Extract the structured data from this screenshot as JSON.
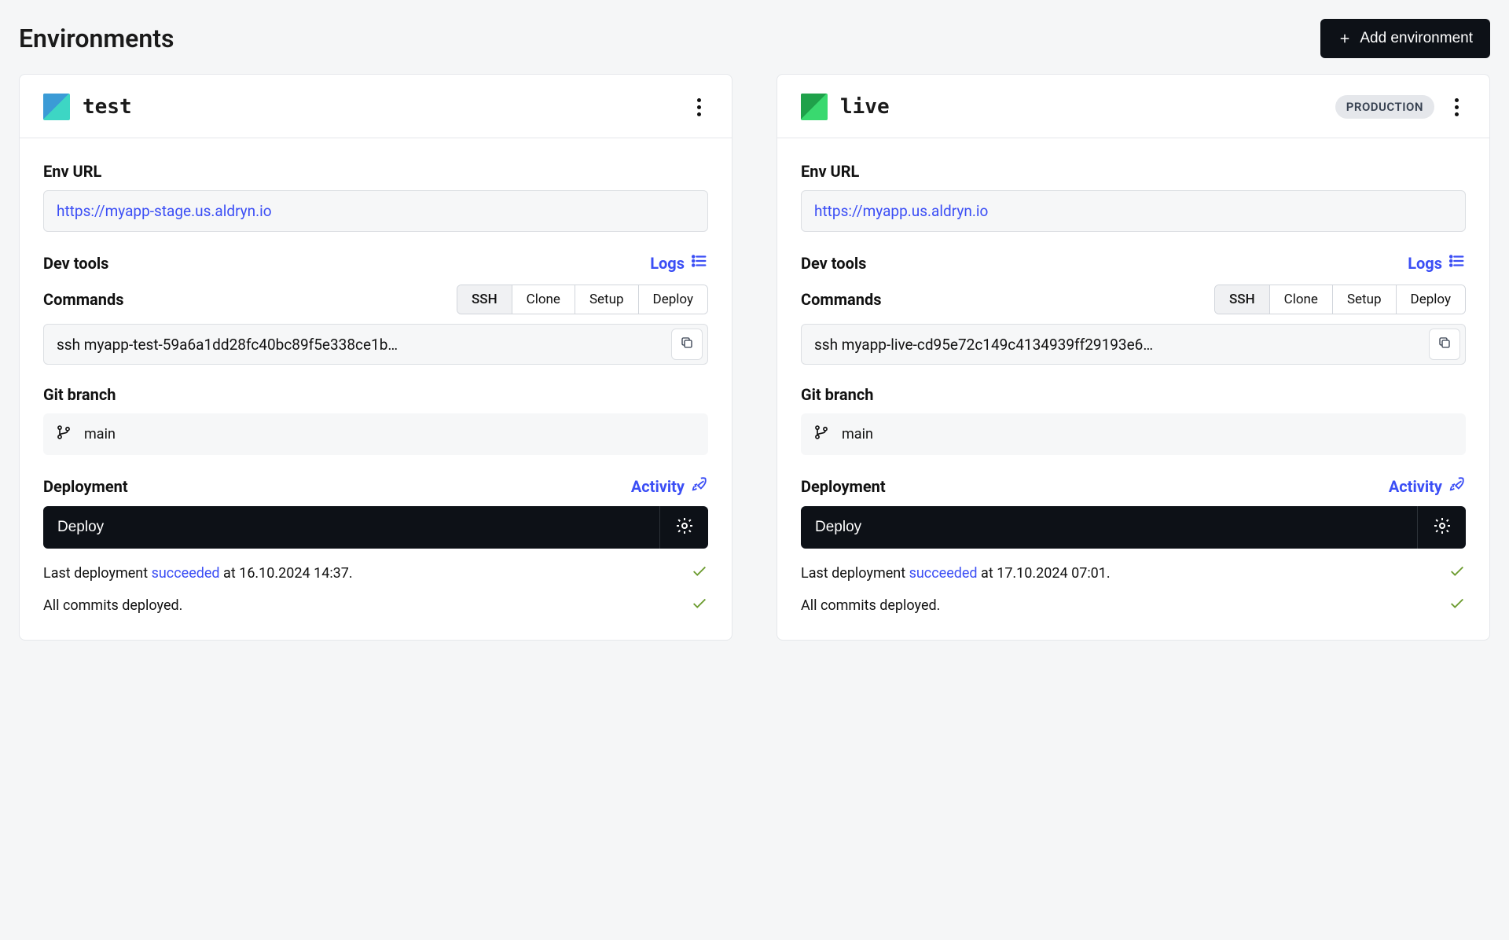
{
  "page": {
    "title": "Environments",
    "add_button": "Add environment"
  },
  "labels": {
    "env_url": "Env URL",
    "dev_tools": "Dev tools",
    "logs": "Logs",
    "commands": "Commands",
    "git_branch": "Git branch",
    "deployment": "Deployment",
    "activity": "Activity",
    "deploy": "Deploy",
    "last_deployment_prefix": "Last deployment ",
    "succeeded": "succeeded",
    "at": " at ",
    "all_commits": "All commits deployed."
  },
  "tabs": {
    "ssh": "SSH",
    "clone": "Clone",
    "setup": "Setup",
    "deploy": "Deploy"
  },
  "envs": [
    {
      "key": "test",
      "name": "test",
      "icon_variant": "test-ic",
      "badge": null,
      "url": "https://myapp-stage.us.aldryn.io",
      "active_tab": "ssh",
      "command": "ssh myapp-test-59a6a1dd28fc40bc89f5e338ce1b…",
      "branch": "main",
      "last_deploy_time": "16.10.2024 14:37",
      "last_deploy_suffix": ".",
      "commits_deployed": true
    },
    {
      "key": "live",
      "name": "live",
      "icon_variant": "live-ic",
      "badge": "PRODUCTION",
      "url": "https://myapp.us.aldryn.io",
      "active_tab": "ssh",
      "command": "ssh myapp-live-cd95e72c149c4134939ff29193e6…",
      "branch": "main",
      "last_deploy_time": "17.10.2024 07:01",
      "last_deploy_suffix": ".",
      "commits_deployed": true
    }
  ],
  "colors": {
    "background": "#f5f6f7",
    "card_bg": "#ffffff",
    "border": "#e5e7eb",
    "link": "#3b4ef5",
    "dark": "#0d1117",
    "check": "#6b9b2e",
    "badge_bg": "#e5e7eb"
  }
}
